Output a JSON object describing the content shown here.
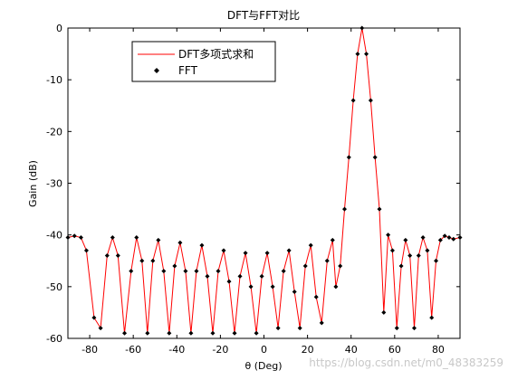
{
  "chart_data": {
    "type": "line",
    "title": "DFT与FFT对比",
    "xlabel": "θ (Deg)",
    "ylabel": "Gain (dB)",
    "xlim": [
      -90,
      90
    ],
    "ylim": [
      -60,
      0
    ],
    "x_ticks": [
      -80,
      -60,
      -40,
      -20,
      0,
      20,
      40,
      60,
      80
    ],
    "y_ticks": [
      0,
      -10,
      -20,
      -30,
      -40,
      -50,
      -60
    ],
    "grid": false,
    "legend_position": "top-left",
    "series": [
      {
        "name": "DFT多项式求和",
        "style": "line",
        "color": "#ff0000",
        "x": [
          -90,
          -87,
          -84,
          -81.5,
          -78,
          -75,
          -72,
          -69.5,
          -67,
          -64,
          -61,
          -58.5,
          -56,
          -53.5,
          -51,
          -48.5,
          -46,
          -43.5,
          -41,
          -38.5,
          -36,
          -33.5,
          -31,
          -28.5,
          -26,
          -23.5,
          -21,
          -18.5,
          -16,
          -13.5,
          -11,
          -8.5,
          -6,
          -3.5,
          -1,
          1.5,
          4,
          6.5,
          9,
          11.5,
          14,
          16.5,
          19,
          21.5,
          24,
          26.5,
          29,
          31.5,
          33,
          35,
          37,
          39,
          41,
          43,
          45,
          47,
          49,
          51,
          53,
          55,
          57,
          59,
          61,
          63,
          65,
          67,
          69,
          71,
          73,
          75,
          77,
          79,
          81,
          83,
          85,
          87,
          90
        ],
        "y": [
          -40.5,
          -40.2,
          -40.5,
          -43,
          -56,
          -58,
          -44,
          -40.5,
          -44,
          -59,
          -47,
          -40.5,
          -45,
          -59,
          -45,
          -41,
          -47,
          -59,
          -46,
          -41.5,
          -47,
          -59,
          -47,
          -42,
          -48,
          -59,
          -47,
          -43,
          -49,
          -59,
          -48,
          -43.5,
          -50,
          -59,
          -48,
          -43.5,
          -50,
          -58,
          -47,
          -43,
          -51,
          -58,
          -46,
          -42,
          -52,
          -57,
          -45,
          -41,
          -50,
          -46,
          -35,
          -25,
          -14,
          -5,
          0,
          -5,
          -14,
          -25,
          -35,
          -55,
          -40,
          -43,
          -58,
          -46,
          -41,
          -44,
          -58,
          -44,
          -40.5,
          -43,
          -56,
          -45,
          -41,
          -40.2,
          -40.5,
          -40.8,
          -40.5
        ]
      },
      {
        "name": "FFT",
        "style": "marker",
        "marker": "diamond",
        "color": "#000000",
        "x": [
          -90,
          -87,
          -84,
          -81.5,
          -78,
          -75,
          -72,
          -69.5,
          -67,
          -64,
          -61,
          -58.5,
          -56,
          -53.5,
          -51,
          -48.5,
          -46,
          -43.5,
          -41,
          -38.5,
          -36,
          -33.5,
          -31,
          -28.5,
          -26,
          -23.5,
          -21,
          -18.5,
          -16,
          -13.5,
          -11,
          -8.5,
          -6,
          -3.5,
          -1,
          1.5,
          4,
          6.5,
          9,
          11.5,
          14,
          16.5,
          19,
          21.5,
          24,
          26.5,
          29,
          31.5,
          33,
          35,
          37,
          39,
          41,
          43,
          45,
          47,
          49,
          51,
          53,
          55,
          57,
          59,
          61,
          63,
          65,
          67,
          69,
          71,
          73,
          75,
          77,
          79,
          81,
          83,
          85,
          87,
          90
        ],
        "y": [
          -40.5,
          -40.2,
          -40.5,
          -43,
          -56,
          -58,
          -44,
          -40.5,
          -44,
          -59,
          -47,
          -40.5,
          -45,
          -59,
          -45,
          -41,
          -47,
          -59,
          -46,
          -41.5,
          -47,
          -59,
          -47,
          -42,
          -48,
          -59,
          -47,
          -43,
          -49,
          -59,
          -48,
          -43.5,
          -50,
          -59,
          -48,
          -43.5,
          -50,
          -58,
          -47,
          -43,
          -51,
          -58,
          -46,
          -42,
          -52,
          -57,
          -45,
          -41,
          -50,
          -46,
          -35,
          -25,
          -14,
          -5,
          0,
          -5,
          -14,
          -25,
          -35,
          -55,
          -40,
          -43,
          -58,
          -46,
          -41,
          -44,
          -58,
          -44,
          -40.5,
          -43,
          -56,
          -45,
          -41,
          -40.2,
          -40.5,
          -40.8,
          -40.5
        ]
      }
    ]
  },
  "watermark": "https://blog.csdn.net/m0_48383259"
}
